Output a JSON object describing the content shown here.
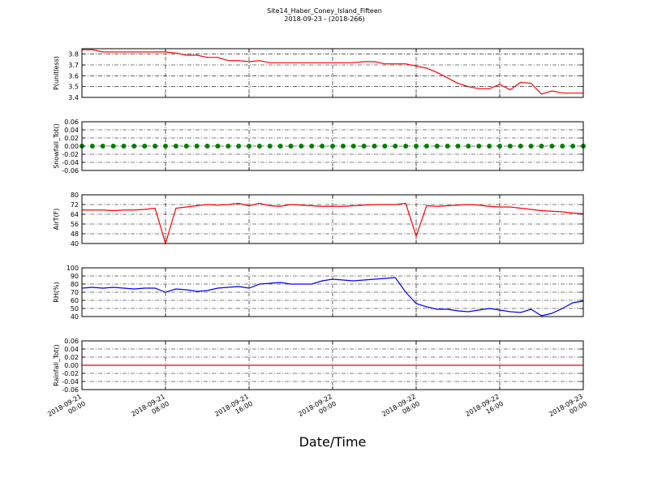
{
  "figure": {
    "title": "Site14_Haber_Coney_Island_Fifteen",
    "subtitle": "2018-09-23 - (2018-266)",
    "xlabel": "Date/Time",
    "xlim": [
      "2018-09-21 00:00",
      "2018-09-23 00:00"
    ],
    "xticks": [
      "2018-09-21 00:00",
      "2018-09-21 08:00",
      "2018-09-21 16:00",
      "2018-09-22 00:00",
      "2018-09-22 08:00",
      "2018-09-22 16:00",
      "2018-09-23 00:00"
    ],
    "x": [
      "2018-09-21 00:00",
      "2018-09-21 01:00",
      "2018-09-21 02:00",
      "2018-09-21 03:00",
      "2018-09-21 04:00",
      "2018-09-21 05:00",
      "2018-09-21 06:00",
      "2018-09-21 07:00",
      "2018-09-21 08:00",
      "2018-09-21 09:00",
      "2018-09-21 10:00",
      "2018-09-21 11:00",
      "2018-09-21 12:00",
      "2018-09-21 13:00",
      "2018-09-21 14:00",
      "2018-09-21 15:00",
      "2018-09-21 16:00",
      "2018-09-21 17:00",
      "2018-09-21 18:00",
      "2018-09-21 19:00",
      "2018-09-21 20:00",
      "2018-09-21 21:00",
      "2018-09-21 22:00",
      "2018-09-21 23:00",
      "2018-09-22 00:00",
      "2018-09-22 01:00",
      "2018-09-22 02:00",
      "2018-09-22 03:00",
      "2018-09-22 04:00",
      "2018-09-22 05:00",
      "2018-09-22 06:00",
      "2018-09-22 07:00",
      "2018-09-22 08:00",
      "2018-09-22 09:00",
      "2018-09-22 10:00",
      "2018-09-22 11:00",
      "2018-09-22 12:00",
      "2018-09-22 13:00",
      "2018-09-22 14:00",
      "2018-09-22 15:00",
      "2018-09-22 16:00",
      "2018-09-22 17:00",
      "2018-09-22 18:00",
      "2018-09-22 19:00",
      "2018-09-22 20:00",
      "2018-09-22 21:00",
      "2018-09-22 22:00",
      "2018-09-22 23:00",
      "2018-09-23 00:00"
    ]
  },
  "chart_data": [
    {
      "type": "line",
      "ylabel": "P(unitless)",
      "ylim": [
        3.4,
        3.85
      ],
      "yticks": [
        3.4,
        3.5,
        3.6,
        3.7,
        3.8
      ],
      "grid": true,
      "series": [
        {
          "color": "#ff0000",
          "values": [
            3.84,
            3.84,
            3.82,
            3.82,
            3.82,
            3.82,
            3.82,
            3.82,
            3.82,
            3.81,
            3.79,
            3.79,
            3.77,
            3.77,
            3.74,
            3.74,
            3.73,
            3.74,
            3.72,
            3.72,
            3.72,
            3.72,
            3.72,
            3.72,
            3.72,
            3.72,
            3.72,
            3.73,
            3.73,
            3.71,
            3.71,
            3.71,
            3.69,
            3.67,
            3.63,
            3.58,
            3.53,
            3.5,
            3.48,
            3.48,
            3.52,
            3.47,
            3.54,
            3.53,
            3.43,
            3.46,
            3.44,
            3.44,
            3.44
          ]
        }
      ]
    },
    {
      "type": "scatter",
      "ylabel": "Snowfall_Tot()",
      "ylim": [
        -0.06,
        0.06
      ],
      "yticks": [
        -0.06,
        -0.04,
        -0.02,
        {
          "value": 0,
          "label": "0.00"
        },
        0.02,
        0.04,
        0.06
      ],
      "grid": true,
      "series": [
        {
          "color": "#008000",
          "values": [
            0,
            0,
            0,
            0,
            0,
            0,
            0,
            0,
            0,
            0,
            0,
            0,
            0,
            0,
            0,
            0,
            0,
            0,
            0,
            0,
            0,
            0,
            0,
            0,
            0,
            0,
            0,
            0,
            0,
            0,
            0,
            0,
            0,
            0,
            0,
            0,
            0,
            0,
            0,
            0,
            0,
            0,
            0,
            0,
            0,
            0,
            0,
            0,
            0
          ]
        }
      ]
    },
    {
      "type": "line",
      "ylabel": "AirT(F)",
      "ylim": [
        40,
        80
      ],
      "yticks": [
        40,
        48,
        56,
        64,
        72,
        80
      ],
      "grid": true,
      "series": [
        {
          "color": "#ff0000",
          "values": [
            67.5,
            67.5,
            67.5,
            67,
            67.5,
            67.5,
            68,
            69,
            40,
            69,
            70,
            71,
            72,
            71.5,
            72,
            73,
            71,
            73,
            71,
            70.5,
            72,
            71.5,
            71,
            70.5,
            70.5,
            70.5,
            71,
            71.5,
            72,
            72,
            72,
            73,
            46,
            71,
            70.5,
            71,
            71.5,
            72,
            71.5,
            70.5,
            70,
            70,
            69,
            68,
            67,
            66.5,
            66,
            65,
            64.5
          ]
        }
      ]
    },
    {
      "type": "line",
      "ylabel": "RH(%)",
      "ylim": [
        40,
        100
      ],
      "yticks": [
        40,
        50,
        60,
        70,
        80,
        90,
        100
      ],
      "grid": true,
      "series": [
        {
          "color": "#0000ff",
          "values": [
            75,
            76,
            75,
            76,
            75,
            74,
            75,
            75,
            70,
            74,
            73,
            71,
            72,
            75,
            76,
            77,
            75,
            80,
            81,
            82,
            80,
            80,
            80,
            84,
            86,
            85,
            84,
            85,
            86,
            87,
            88,
            70,
            56,
            52,
            49,
            49,
            47,
            46,
            48,
            50,
            48,
            46,
            45,
            49,
            41,
            44,
            50,
            57,
            59
          ]
        }
      ]
    },
    {
      "type": "line",
      "ylabel": "Rainfall_Tot()",
      "ylim": [
        -0.06,
        0.06
      ],
      "yticks": [
        -0.06,
        -0.04,
        -0.02,
        {
          "value": 0,
          "label": "0.00"
        },
        0.02,
        0.04,
        0.06
      ],
      "grid": true,
      "series": [
        {
          "color": "#ff0000",
          "values": [
            0,
            0,
            0,
            0,
            0,
            0,
            0,
            0,
            0,
            0,
            0,
            0,
            0,
            0,
            0,
            0,
            0,
            0,
            0,
            0,
            0,
            0,
            0,
            0,
            0,
            0,
            0,
            0,
            0,
            0,
            0,
            0,
            0,
            0,
            0,
            0,
            0,
            0,
            0,
            0,
            0,
            0,
            0,
            0,
            0,
            0,
            0,
            0,
            0
          ]
        }
      ]
    }
  ]
}
